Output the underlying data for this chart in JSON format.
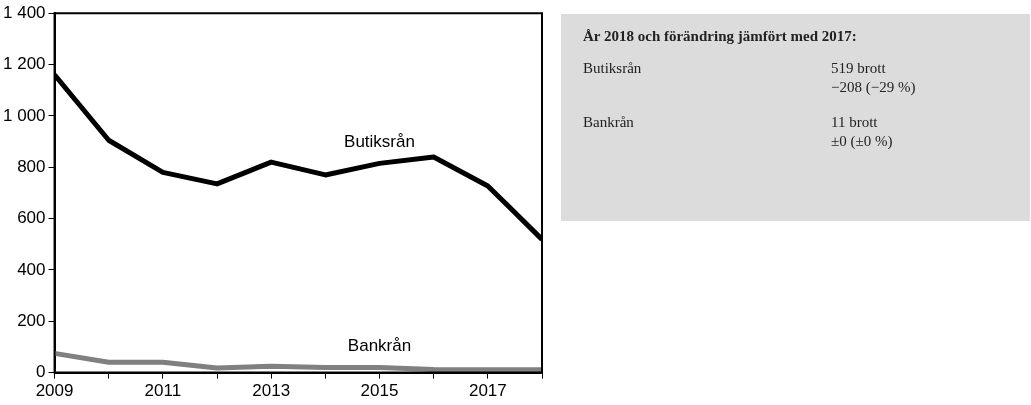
{
  "chart_data": [
    {
      "type": "line",
      "x": [
        2009,
        2010,
        2011,
        2012,
        2013,
        2014,
        2015,
        2016,
        2017,
        2018
      ],
      "series": [
        {
          "name": "Butiksrån",
          "color": "#000000",
          "values": [
            1160,
            905,
            780,
            735,
            820,
            770,
            815,
            840,
            727,
            519
          ]
        },
        {
          "name": "Bankrån",
          "color": "#808080",
          "values": [
            75,
            40,
            40,
            18,
            25,
            20,
            20,
            12,
            11,
            11
          ]
        }
      ],
      "xlim": [
        2009,
        2018
      ],
      "xticks": [
        2009,
        {
          "value": 2010,
          "label": null
        },
        2011,
        {
          "value": 2012,
          "label": null
        },
        2013,
        {
          "value": 2014,
          "label": null
        },
        2015,
        {
          "value": 2016,
          "label": null
        },
        2017,
        {
          "value": 2018,
          "label": null
        }
      ],
      "ylim": [
        0,
        1400
      ],
      "yticks": [
        {
          "value": 0,
          "label": "0"
        },
        {
          "value": 200,
          "label": "200"
        },
        {
          "value": 400,
          "label": "400"
        },
        {
          "value": 600,
          "label": "600"
        },
        {
          "value": 800,
          "label": "800"
        },
        {
          "value": 1000,
          "label": "1 000"
        },
        {
          "value": 1200,
          "label": "1 200"
        },
        {
          "value": 1400,
          "label": "1 400"
        }
      ],
      "grid": false,
      "legend": false,
      "marker": "none",
      "line_style": "solid"
    },
    {
      "type": "other",
      "title": "År 2018 och förändring jämfört med 2017:",
      "annotations": [
        "Butiksrån",
        "519 brott",
        "−208 (−29 %)",
        "Bankrån",
        "11 brott",
        "±0 (±0 %)"
      ]
    }
  ]
}
